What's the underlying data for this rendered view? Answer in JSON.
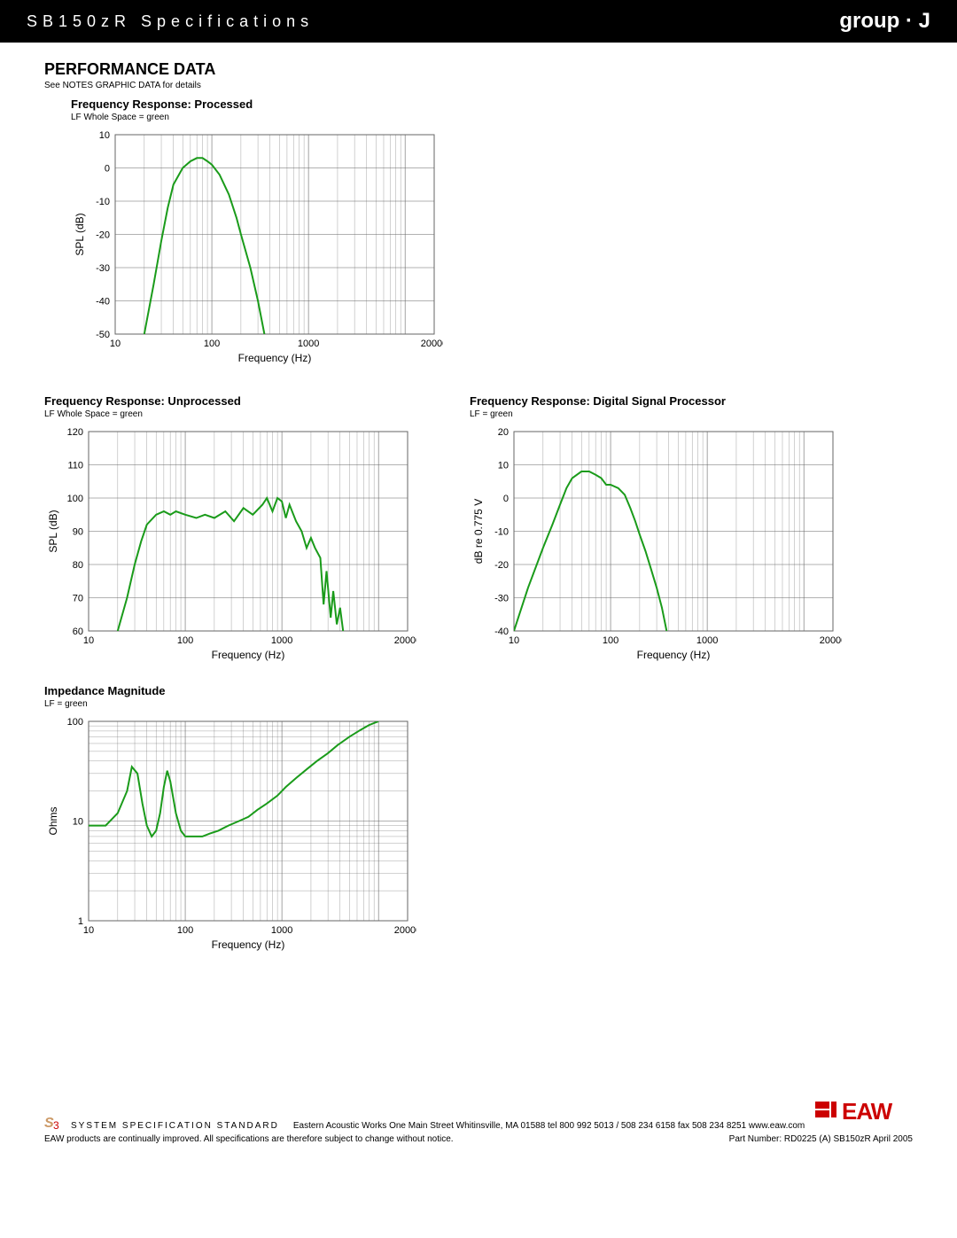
{
  "header": {
    "title": "SB150zR Specifications",
    "group": "group · J"
  },
  "section": {
    "title": "PERFORMANCE DATA",
    "note": "See NOTES GRAPHIC DATA for details"
  },
  "charts": {
    "processed": {
      "type": "line",
      "title": "Frequency Response: Processed",
      "subtitle": "LF Whole Space = green",
      "xlabel": "Frequency (Hz)",
      "ylabel": "SPL (dB)",
      "xmin": 10,
      "xmax": 20000,
      "xscale": "log",
      "xticks": [
        10,
        100,
        1000,
        20000
      ],
      "ymin": -50,
      "ymax": 10,
      "ytick_step": 10,
      "line_color": "#1a9b1a",
      "line_width": 2,
      "grid_color": "#666666",
      "background_color": "#ffffff",
      "data": [
        [
          20,
          -50
        ],
        [
          25,
          -35
        ],
        [
          30,
          -22
        ],
        [
          35,
          -12
        ],
        [
          40,
          -5
        ],
        [
          50,
          0
        ],
        [
          60,
          2
        ],
        [
          70,
          3
        ],
        [
          80,
          3
        ],
        [
          90,
          2
        ],
        [
          100,
          1
        ],
        [
          120,
          -2
        ],
        [
          150,
          -8
        ],
        [
          180,
          -15
        ],
        [
          200,
          -20
        ],
        [
          250,
          -30
        ],
        [
          300,
          -40
        ],
        [
          350,
          -50
        ]
      ]
    },
    "unprocessed": {
      "type": "line",
      "title": "Frequency Response: Unprocessed",
      "subtitle": "LF Whole Space = green",
      "xlabel": "Frequency (Hz)",
      "ylabel": "SPL (dB)",
      "xmin": 10,
      "xmax": 20000,
      "xscale": "log",
      "xticks": [
        10,
        100,
        1000,
        20000
      ],
      "ymin": 60,
      "ymax": 120,
      "ytick_step": 10,
      "line_color": "#1a9b1a",
      "line_width": 2,
      "grid_color": "#666666",
      "background_color": "#ffffff",
      "data": [
        [
          20,
          60
        ],
        [
          25,
          70
        ],
        [
          30,
          80
        ],
        [
          35,
          87
        ],
        [
          40,
          92
        ],
        [
          50,
          95
        ],
        [
          60,
          96
        ],
        [
          70,
          95
        ],
        [
          80,
          96
        ],
        [
          100,
          95
        ],
        [
          130,
          94
        ],
        [
          160,
          95
        ],
        [
          200,
          94
        ],
        [
          260,
          96
        ],
        [
          320,
          93
        ],
        [
          400,
          97
        ],
        [
          500,
          95
        ],
        [
          630,
          98
        ],
        [
          700,
          100
        ],
        [
          800,
          96
        ],
        [
          900,
          100
        ],
        [
          1000,
          99
        ],
        [
          1100,
          94
        ],
        [
          1200,
          98
        ],
        [
          1400,
          93
        ],
        [
          1600,
          90
        ],
        [
          1800,
          85
        ],
        [
          2000,
          88
        ],
        [
          2200,
          85
        ],
        [
          2500,
          82
        ],
        [
          2700,
          68
        ],
        [
          2900,
          78
        ],
        [
          3200,
          64
        ],
        [
          3400,
          72
        ],
        [
          3700,
          62
        ],
        [
          4000,
          67
        ],
        [
          4300,
          60
        ]
      ]
    },
    "dsp": {
      "type": "line",
      "title": "Frequency Response: Digital Signal Processor",
      "subtitle": "LF = green",
      "xlabel": "Frequency (Hz)",
      "ylabel": "dB re 0.775 V",
      "xmin": 10,
      "xmax": 20000,
      "xscale": "log",
      "xticks": [
        10,
        100,
        1000,
        20000
      ],
      "ymin": -40,
      "ymax": 20,
      "ytick_step": 10,
      "line_color": "#1a9b1a",
      "line_width": 2,
      "grid_color": "#666666",
      "background_color": "#ffffff",
      "data": [
        [
          10,
          -40
        ],
        [
          14,
          -27
        ],
        [
          20,
          -15
        ],
        [
          25,
          -8
        ],
        [
          30,
          -2
        ],
        [
          35,
          3
        ],
        [
          40,
          6
        ],
        [
          50,
          8
        ],
        [
          60,
          8
        ],
        [
          70,
          7
        ],
        [
          80,
          6
        ],
        [
          90,
          4
        ],
        [
          100,
          4
        ],
        [
          120,
          3
        ],
        [
          140,
          1
        ],
        [
          160,
          -3
        ],
        [
          180,
          -7
        ],
        [
          200,
          -11
        ],
        [
          230,
          -16
        ],
        [
          260,
          -21
        ],
        [
          300,
          -27
        ],
        [
          340,
          -33
        ],
        [
          380,
          -40
        ]
      ]
    },
    "impedance": {
      "type": "line",
      "title": "Impedance Magnitude",
      "subtitle": "LF = green",
      "xlabel": "Frequency (Hz)",
      "ylabel": "Ohms",
      "xmin": 10,
      "xmax": 20000,
      "xscale": "log",
      "xticks": [
        10,
        100,
        1000,
        20000
      ],
      "ymin": 1,
      "ymax": 100,
      "yscale": "log",
      "yticks": [
        1,
        10,
        100
      ],
      "line_color": "#1a9b1a",
      "line_width": 2,
      "grid_color": "#666666",
      "background_color": "#ffffff",
      "data": [
        [
          10,
          9
        ],
        [
          15,
          9
        ],
        [
          20,
          12
        ],
        [
          25,
          20
        ],
        [
          28,
          35
        ],
        [
          32,
          30
        ],
        [
          36,
          15
        ],
        [
          40,
          9
        ],
        [
          45,
          7
        ],
        [
          50,
          8
        ],
        [
          55,
          12
        ],
        [
          60,
          22
        ],
        [
          65,
          32
        ],
        [
          70,
          25
        ],
        [
          80,
          12
        ],
        [
          90,
          8
        ],
        [
          100,
          7
        ],
        [
          120,
          7
        ],
        [
          150,
          7
        ],
        [
          180,
          7.5
        ],
        [
          220,
          8
        ],
        [
          280,
          9
        ],
        [
          360,
          10
        ],
        [
          450,
          11
        ],
        [
          560,
          13
        ],
        [
          700,
          15
        ],
        [
          900,
          18
        ],
        [
          1100,
          22
        ],
        [
          1400,
          27
        ],
        [
          1800,
          33
        ],
        [
          2300,
          40
        ],
        [
          3000,
          48
        ],
        [
          3800,
          58
        ],
        [
          5000,
          70
        ],
        [
          6500,
          82
        ],
        [
          8000,
          92
        ],
        [
          10000,
          100
        ]
      ]
    }
  },
  "footer": {
    "s3": "SYSTEM SPECIFICATION STANDARD",
    "company": "Eastern Acoustic Works  One Main Street  Whitinsville, MA 01588  tel 800 992 5013 / 508 234 6158  fax 508 234 8251  www.eaw.com",
    "disclaimer": "EAW products are continually improved.  All specifications are therefore subject to change without notice.",
    "partnumber": "Part Number:  RD0225 (A) SB150zR  April 2005",
    "logo": "EAW"
  }
}
